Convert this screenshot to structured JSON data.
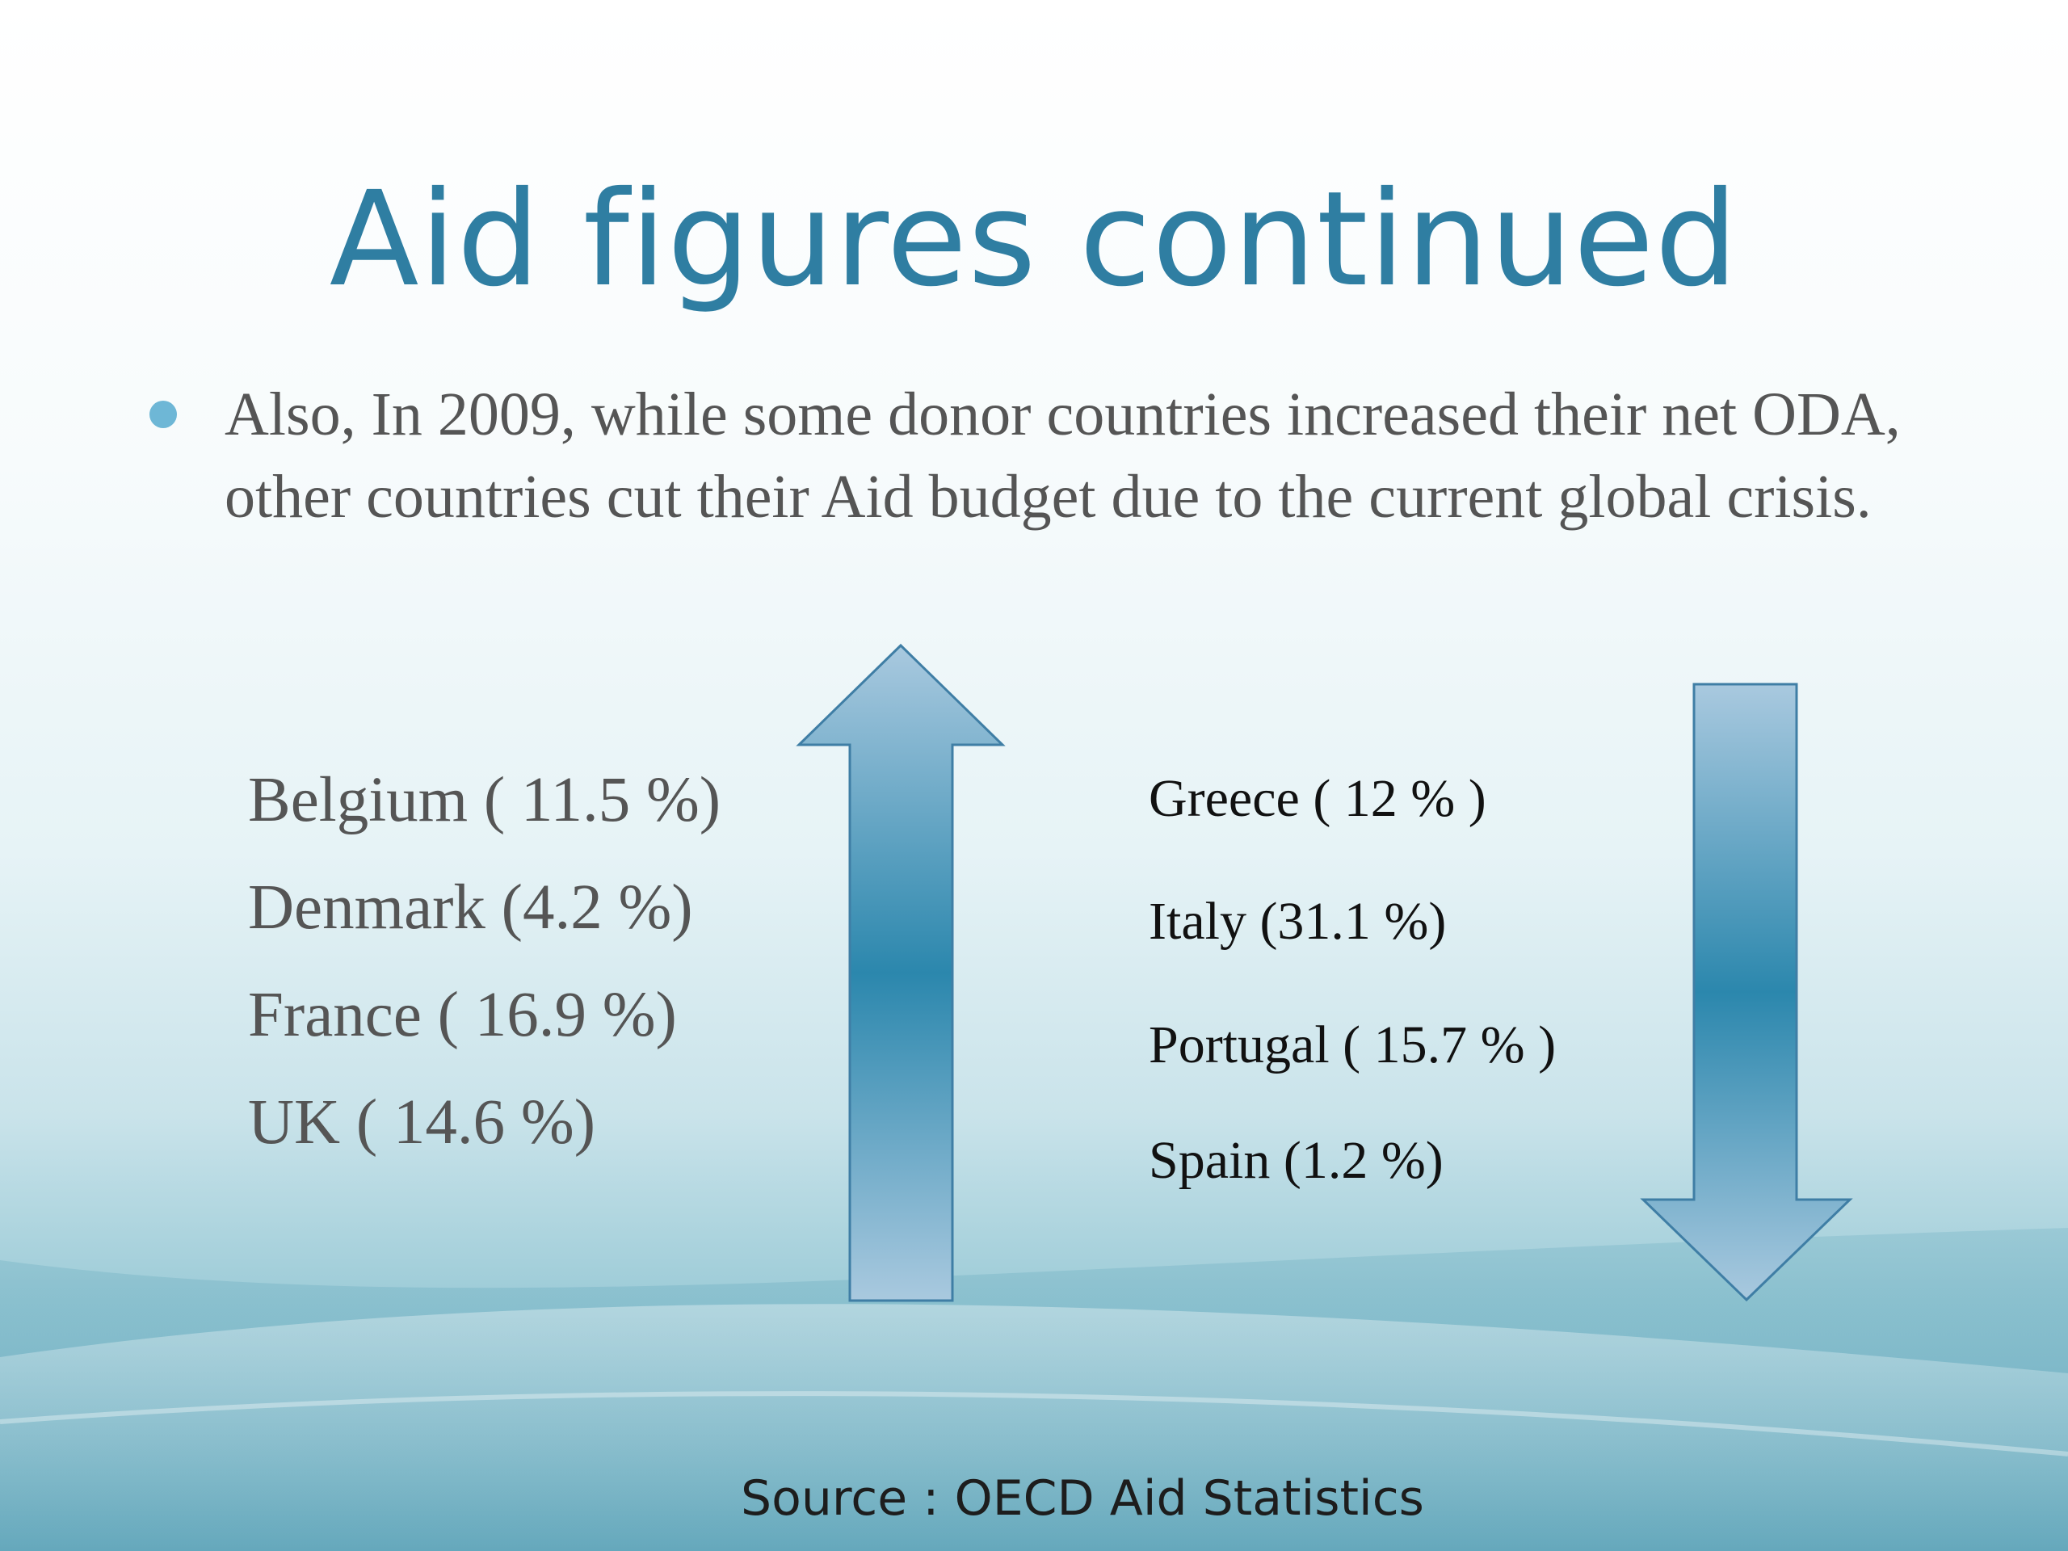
{
  "slide": {
    "title": "Aid figures continued",
    "bullet": "Also, In 2009, while some donor countries increased their net ODA, other countries cut their Aid budget due to the current global crisis.",
    "increased_list": [
      "Belgium ( 11.5 %)",
      "Denmark (4.2 %)",
      "France ( 16.9 %)",
      "UK ( 14.6 %)"
    ],
    "decreased_list": [
      "Greece ( 12 % )",
      "Italy (31.1 %)",
      "Portugal ( 15.7 % )",
      "Spain (1.2 %)"
    ],
    "source": "Source : OECD Aid Statistics"
  },
  "colors": {
    "title": "#2f7ea2",
    "bullet_dot": "#6eb7d6",
    "arrow_fill": "#2b87ad",
    "arrow_stroke": "#3f7ea5"
  },
  "icons": {
    "up_arrow": "up-arrow-icon",
    "down_arrow": "down-arrow-icon"
  }
}
